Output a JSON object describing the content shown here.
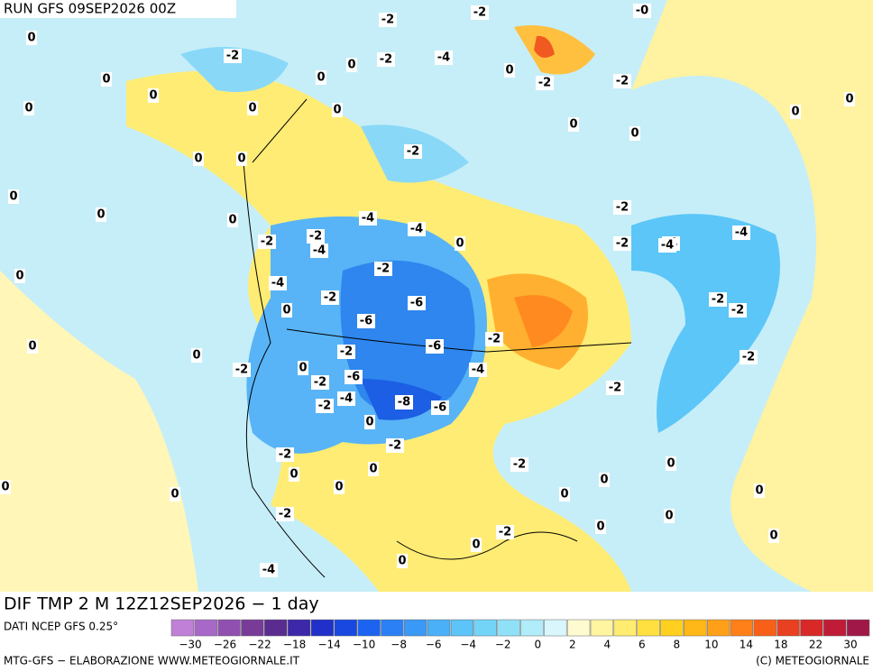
{
  "header": {
    "run": "RUN GFS 09SEP2026 00Z"
  },
  "map": {
    "contour_labels": [
      "-2",
      "-2",
      "-0",
      "0",
      "-2",
      "0",
      "-2",
      "-4",
      "0",
      "-2",
      "0",
      "0",
      "-2",
      "0",
      "0",
      "0",
      "0",
      "0",
      "0",
      "0",
      "0",
      "-2",
      "0",
      "0",
      "-4",
      "-4",
      "-2",
      "-2",
      "-4",
      "0",
      "-2",
      "-4",
      "-2",
      "-6",
      "-2",
      "-4",
      "-4",
      "-6",
      "-6",
      "-2",
      "-2",
      "-4",
      "-2",
      "-6",
      "-2",
      "-4",
      "-8",
      "-6",
      "0",
      "0",
      "-2",
      "-2",
      "-2",
      "-2",
      "0",
      "-2",
      "0",
      "0",
      "-2",
      "-4",
      "-2",
      "-2",
      "-2",
      "-4",
      "-2",
      "0",
      "0",
      "0",
      "0",
      "0",
      "0",
      "0",
      "-2",
      "0",
      "0",
      "0",
      "0",
      "0",
      "0",
      "0",
      "0",
      "0",
      "0",
      "0"
    ]
  },
  "footer": {
    "variable": "DIF TMP 2 M 12Z12SEP2026 − 1 day",
    "source": "DATI NCEP GFS 0.25°",
    "credit": "MTG-GFS − ELABORAZIONE WWW.METEOGIORNALE.IT",
    "copyright": "(C) METEOGIORNALE"
  },
  "colorbar": {
    "colors": [
      "#c080d8",
      "#a868c8",
      "#9050b0",
      "#783c98",
      "#5a2c90",
      "#3c28a8",
      "#2030c8",
      "#1848e0",
      "#1c64f0",
      "#2a80f4",
      "#3a98f6",
      "#4ab0f8",
      "#5cc4f8",
      "#74d4f8",
      "#90e0f8",
      "#b0ecfa",
      "#d8f6fc",
      "#fffbd0",
      "#fff4a0",
      "#ffec70",
      "#ffe040",
      "#ffd020",
      "#ffb818",
      "#ffa018",
      "#ff8018",
      "#f86018",
      "#e84020",
      "#d82828",
      "#c01c38",
      "#a01848"
    ],
    "labels": [
      "−30",
      "−26",
      "−22",
      "−18",
      "−14",
      "−10",
      "−8",
      "−6",
      "−4",
      "−2",
      "0",
      "2",
      "4",
      "6",
      "8",
      "10",
      "14",
      "18",
      "22",
      "30"
    ]
  }
}
